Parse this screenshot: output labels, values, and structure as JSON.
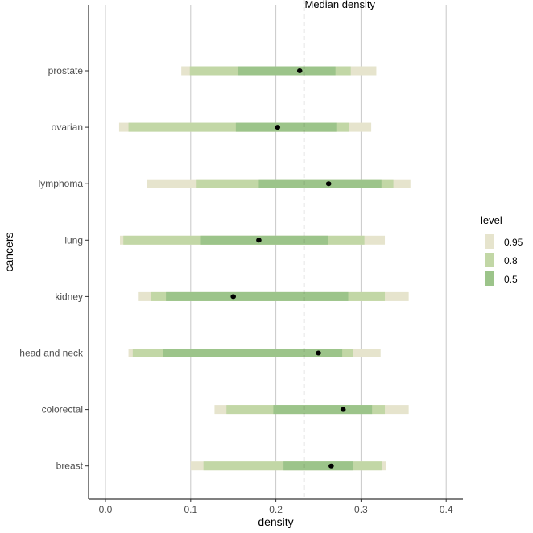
{
  "chart_data": {
    "type": "interval",
    "xlabel": "density",
    "ylabel": "cancers",
    "xlim": [
      -0.02,
      0.42
    ],
    "x_ticks": [
      0.0,
      0.1,
      0.2,
      0.3,
      0.4
    ],
    "x_tick_labels": [
      "0.0",
      "0.1",
      "0.2",
      "0.3",
      "0.4"
    ],
    "grid": "vertical major",
    "reference_line": {
      "label": "Median density",
      "x": 0.233,
      "style": "dashed"
    },
    "legend": {
      "title": "level",
      "position": "right",
      "entries": [
        {
          "label": "0.95",
          "color": "#e6e4cd"
        },
        {
          "label": "0.8",
          "color": "#c2d7a6"
        },
        {
          "label": "0.5",
          "color": "#9cc48a"
        }
      ]
    },
    "point_color": "#000000",
    "categories": [
      "prostate",
      "ovarian",
      "lymphoma",
      "lung",
      "kidney",
      "head and neck",
      "colorectal",
      "breast"
    ],
    "intervals": [
      {
        "category": "prostate",
        "median": 0.228,
        "i95": [
          0.089,
          0.318
        ],
        "i80": [
          0.099,
          0.288
        ],
        "i50": [
          0.155,
          0.27
        ]
      },
      {
        "category": "ovarian",
        "median": 0.202,
        "i95": [
          0.016,
          0.312
        ],
        "i80": [
          0.027,
          0.286
        ],
        "i50": [
          0.153,
          0.271
        ]
      },
      {
        "category": "lymphoma",
        "median": 0.262,
        "i95": [
          0.049,
          0.358
        ],
        "i80": [
          0.107,
          0.338
        ],
        "i50": [
          0.18,
          0.324
        ]
      },
      {
        "category": "lung",
        "median": 0.18,
        "i95": [
          0.017,
          0.328
        ],
        "i80": [
          0.021,
          0.304
        ],
        "i50": [
          0.112,
          0.261
        ]
      },
      {
        "category": "kidney",
        "median": 0.15,
        "i95": [
          0.039,
          0.356
        ],
        "i80": [
          0.053,
          0.328
        ],
        "i50": [
          0.071,
          0.285
        ]
      },
      {
        "category": "head and neck",
        "median": 0.25,
        "i95": [
          0.027,
          0.323
        ],
        "i80": [
          0.032,
          0.291
        ],
        "i50": [
          0.068,
          0.278
        ]
      },
      {
        "category": "colorectal",
        "median": 0.279,
        "i95": [
          0.128,
          0.356
        ],
        "i80": [
          0.142,
          0.328
        ],
        "i50": [
          0.197,
          0.313
        ]
      },
      {
        "category": "breast",
        "median": 0.265,
        "i95": [
          0.1,
          0.329
        ],
        "i80": [
          0.115,
          0.325
        ],
        "i50": [
          0.209,
          0.291
        ]
      }
    ]
  }
}
